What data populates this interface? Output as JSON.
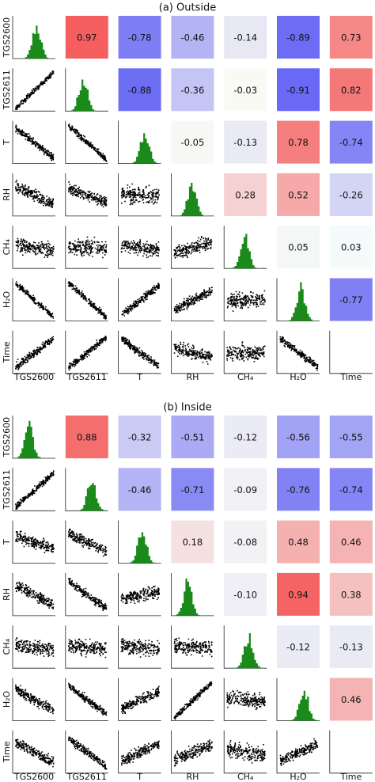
{
  "panels": [
    {
      "title": "(a) Outside",
      "variables": [
        "TGS2600",
        "TGS2611",
        "T",
        "RH",
        "CH₄",
        "H₂O",
        "Time"
      ],
      "correlations": [
        {
          "values": [
            0.97,
            -0.78,
            -0.46,
            -0.14,
            -0.89,
            0.73
          ],
          "value_labels": [
            "0.97",
            "-0.78",
            "-0.46",
            "-0.14",
            "-0.89",
            "0.73"
          ]
        },
        {
          "values": [
            -0.88,
            -0.36,
            -0.03,
            -0.91,
            0.82
          ],
          "value_labels": [
            "-0.88",
            "-0.36",
            "-0.03",
            "-0.91",
            "0.82"
          ]
        },
        {
          "values": [
            -0.05,
            -0.13,
            0.78,
            -0.74
          ],
          "value_labels": [
            "-0.05",
            "-0.13",
            "0.78",
            "-0.74"
          ]
        },
        {
          "values": [
            0.28,
            0.52,
            -0.26
          ],
          "value_labels": [
            "0.28",
            "0.52",
            "-0.26"
          ]
        },
        {
          "values": [
            0.05,
            0.03
          ],
          "value_labels": [
            "0.05",
            "0.03"
          ]
        },
        {
          "values": [
            -0.77
          ],
          "value_labels": [
            "-0.77"
          ]
        }
      ]
    },
    {
      "title": "(b) Inside",
      "variables": [
        "TGS2600",
        "TGS2611",
        "T",
        "RH",
        "CH₄",
        "H₂O",
        "Time"
      ],
      "correlations": [
        {
          "values": [
            0.88,
            -0.32,
            -0.51,
            -0.12,
            -0.56,
            -0.55
          ],
          "value_labels": [
            "0.88",
            "-0.32",
            "-0.51",
            "-0.12",
            "-0.56",
            "-0.55"
          ]
        },
        {
          "values": [
            -0.46,
            -0.71,
            -0.09,
            -0.76,
            -0.74
          ],
          "value_labels": [
            "-0.46",
            "-0.71",
            "-0.09",
            "-0.76",
            "-0.74"
          ]
        },
        {
          "values": [
            0.18,
            -0.08,
            0.48,
            0.46
          ],
          "value_labels": [
            "0.18",
            "-0.08",
            "0.48",
            "0.46"
          ]
        },
        {
          "values": [
            -0.1,
            0.94,
            0.38
          ],
          "value_labels": [
            "-0.10",
            "0.94",
            "0.38"
          ]
        },
        {
          "values": [
            -0.12,
            -0.13
          ],
          "value_labels": [
            "-0.12",
            "-0.13"
          ]
        },
        {
          "values": [
            0.46
          ],
          "value_labels": [
            "0.46"
          ]
        }
      ]
    }
  ]
}
